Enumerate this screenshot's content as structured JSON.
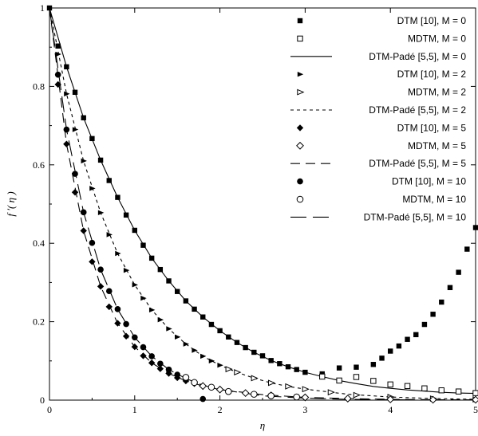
{
  "chart_data": {
    "type": "line",
    "title": "",
    "xlabel": "η",
    "ylabel": "f ′( η )",
    "xlim": [
      0,
      5
    ],
    "ylim": [
      0,
      1
    ],
    "x_ticks": [
      0,
      1,
      2,
      3,
      4,
      5
    ],
    "y_ticks": [
      0,
      0.2,
      0.4,
      0.6,
      0.8,
      1
    ],
    "x_tick_labels": [
      "0",
      "1",
      "2",
      "3",
      "4",
      "5"
    ],
    "y_tick_labels": [
      "0",
      "0.2",
      "0.4",
      "0.6",
      "0.8",
      "1"
    ],
    "grid": false,
    "legend_position": "top-right",
    "series": [
      {
        "name": "DTM [10], M = 0",
        "marker": "filled-square",
        "x": [
          0,
          0.1,
          0.2,
          0.3,
          0.4,
          0.5,
          0.6,
          0.7,
          0.8,
          0.9,
          1.0,
          1.1,
          1.2,
          1.3,
          1.4,
          1.5,
          1.6,
          1.7,
          1.8,
          1.9,
          2.0,
          2.1,
          2.2,
          2.3,
          2.4,
          2.5,
          2.6,
          2.7,
          2.8,
          2.9,
          3.0,
          3.2,
          3.4,
          3.6,
          3.8,
          3.9,
          4.0,
          4.1,
          4.2,
          4.3,
          4.4,
          4.5,
          4.6,
          4.7,
          4.8,
          4.9,
          5.0
        ],
        "y": [
          1.0,
          0.903,
          0.85,
          0.785,
          0.72,
          0.667,
          0.612,
          0.56,
          0.517,
          0.472,
          0.433,
          0.395,
          0.362,
          0.333,
          0.304,
          0.277,
          0.253,
          0.232,
          0.212,
          0.193,
          0.177,
          0.161,
          0.147,
          0.134,
          0.122,
          0.113,
          0.101,
          0.093,
          0.085,
          0.078,
          0.071,
          0.067,
          0.082,
          0.084,
          0.091,
          0.107,
          0.125,
          0.138,
          0.155,
          0.167,
          0.193,
          0.219,
          0.25,
          0.287,
          0.326,
          0.385,
          0.44
        ]
      },
      {
        "name": "MDTM, M = 0",
        "marker": "open-square",
        "x": [
          3.2,
          3.4,
          3.6,
          3.8,
          4.0,
          4.2,
          4.4,
          4.6,
          4.8,
          5.0
        ],
        "y": [
          0.06,
          0.05,
          0.059,
          0.049,
          0.04,
          0.036,
          0.03,
          0.025,
          0.022,
          0.018
        ]
      },
      {
        "name": "DTM-Padé [5,5], M = 0",
        "line": "solid",
        "x": [
          0,
          0.2,
          0.4,
          0.6,
          0.8,
          1.0,
          1.2,
          1.4,
          1.6,
          1.8,
          2.0,
          2.2,
          2.4,
          2.6,
          2.8,
          3.0,
          3.2,
          3.4,
          3.6,
          3.8,
          4.0,
          4.2,
          4.4,
          4.6,
          4.8,
          5.0
        ],
        "y": [
          1.0,
          0.85,
          0.72,
          0.612,
          0.517,
          0.433,
          0.362,
          0.304,
          0.253,
          0.212,
          0.177,
          0.147,
          0.122,
          0.101,
          0.085,
          0.071,
          0.06,
          0.05,
          0.042,
          0.035,
          0.03,
          0.026,
          0.023,
          0.02,
          0.018,
          0.017
        ]
      },
      {
        "name": "DTM [10], M = 2",
        "marker": "filled-triangle-right",
        "x": [
          0.1,
          0.2,
          0.3,
          0.4,
          0.5,
          0.6,
          0.7,
          0.8,
          0.9,
          1.0,
          1.1,
          1.2,
          1.3,
          1.4,
          1.5,
          1.6,
          1.7,
          1.8,
          1.9,
          2.0
        ],
        "y": [
          0.882,
          0.781,
          0.69,
          0.61,
          0.54,
          0.478,
          0.422,
          0.374,
          0.331,
          0.294,
          0.26,
          0.23,
          0.205,
          0.182,
          0.161,
          0.143,
          0.127,
          0.112,
          0.1,
          0.089
        ]
      },
      {
        "name": "MDTM, M = 2",
        "marker": "open-triangle-right",
        "x": [
          2.1,
          2.2,
          2.4,
          2.6,
          2.8,
          3.0,
          3.3,
          3.6,
          4.0,
          4.5,
          5.0
        ],
        "y": [
          0.079,
          0.071,
          0.056,
          0.044,
          0.035,
          0.028,
          0.02,
          0.013,
          0.008,
          0.004,
          0.002
        ]
      },
      {
        "name": "DTM-Padé [5,5], M = 2",
        "line": "dashed-short",
        "x": [
          0,
          0.2,
          0.4,
          0.6,
          0.8,
          1.0,
          1.2,
          1.4,
          1.6,
          1.8,
          2.0,
          2.2,
          2.4,
          2.6,
          2.8,
          3.0,
          3.5,
          4.0,
          4.5,
          5.0
        ],
        "y": [
          1.0,
          0.781,
          0.61,
          0.478,
          0.374,
          0.294,
          0.23,
          0.182,
          0.143,
          0.112,
          0.089,
          0.071,
          0.056,
          0.044,
          0.035,
          0.028,
          0.015,
          0.008,
          0.004,
          0.002
        ]
      },
      {
        "name": "DTM [10], M = 5",
        "marker": "filled-diamond",
        "x": [
          0.1,
          0.2,
          0.3,
          0.4,
          0.5,
          0.6,
          0.7,
          0.8,
          0.9,
          1.0,
          1.1,
          1.2,
          1.3,
          1.4,
          1.5,
          1.6,
          1.7
        ],
        "y": [
          0.805,
          0.653,
          0.53,
          0.432,
          0.353,
          0.29,
          0.238,
          0.196,
          0.163,
          0.136,
          0.113,
          0.095,
          0.08,
          0.068,
          0.057,
          0.049,
          0.042
        ]
      },
      {
        "name": "MDTM, M = 5",
        "marker": "open-diamond",
        "x": [
          1.8,
          2.0,
          2.3,
          2.6,
          3.0,
          3.5,
          4.0,
          4.5,
          5.0
        ],
        "y": [
          0.036,
          0.027,
          0.018,
          0.012,
          0.007,
          0.004,
          0.002,
          0.001,
          0.001
        ]
      },
      {
        "name": "DTM-Padé [5,5], M = 5",
        "line": "dashed-long",
        "x": [
          0,
          0.2,
          0.4,
          0.6,
          0.8,
          1.0,
          1.2,
          1.4,
          1.6,
          1.8,
          2.0,
          2.5,
          3.0,
          3.5,
          4.0,
          4.5,
          5.0
        ],
        "y": [
          1.0,
          0.653,
          0.432,
          0.29,
          0.196,
          0.136,
          0.095,
          0.068,
          0.049,
          0.036,
          0.027,
          0.014,
          0.007,
          0.004,
          0.002,
          0.001,
          0.001
        ]
      },
      {
        "name": "DTM [10], M = 10",
        "marker": "filled-circle",
        "x": [
          0.1,
          0.2,
          0.3,
          0.4,
          0.5,
          0.6,
          0.7,
          0.8,
          0.9,
          1.0,
          1.1,
          1.2,
          1.3,
          1.4,
          1.5,
          1.8
        ],
        "y": [
          0.83,
          0.69,
          0.577,
          0.479,
          0.401,
          0.333,
          0.278,
          0.232,
          0.194,
          0.16,
          0.135,
          0.112,
          0.093,
          0.078,
          0.065,
          0.003
        ]
      },
      {
        "name": "MDTM, M = 10",
        "marker": "open-circle",
        "x": [
          1.6,
          1.7,
          1.9,
          2.1,
          2.4,
          2.6,
          2.9
        ],
        "y": [
          0.058,
          0.045,
          0.033,
          0.022,
          0.015,
          0.011,
          0.008
        ]
      },
      {
        "name": "DTM-Padé [5,5], M = 10",
        "line": "dashed-longest",
        "x": [
          0,
          0.2,
          0.4,
          0.6,
          0.8,
          1.0,
          1.2,
          1.4,
          1.6,
          1.8,
          2.0,
          2.5,
          3.0,
          3.5,
          4.0,
          4.5,
          5.0
        ],
        "y": [
          1.0,
          0.69,
          0.479,
          0.333,
          0.232,
          0.16,
          0.112,
          0.078,
          0.055,
          0.038,
          0.027,
          0.011,
          0.005,
          0.002,
          0.001,
          0.0,
          0.0
        ]
      }
    ]
  }
}
